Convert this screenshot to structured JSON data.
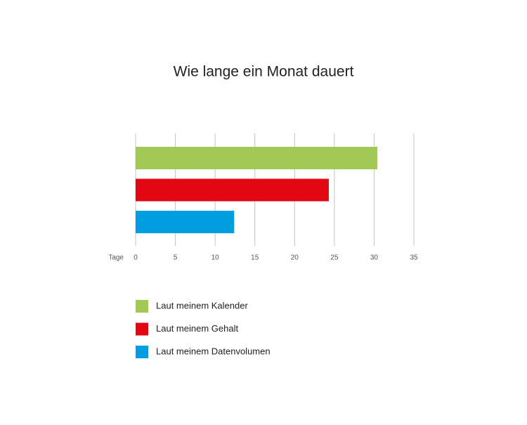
{
  "chart_data": {
    "type": "bar",
    "orientation": "horizontal",
    "title": "Wie lange ein Monat dauert",
    "xlabel": "Tage",
    "series": [
      {
        "name": "Laut meinem Kalender",
        "color": "#a2c955",
        "values": [
          30.4
        ]
      },
      {
        "name": "Laut meinem Gehalt",
        "color": "#e30613",
        "values": [
          24.3
        ]
      },
      {
        "name": "Laut meinem Datenvolumen",
        "color": "#009ee0",
        "values": [
          12.4
        ]
      }
    ],
    "xlim": [
      0,
      35
    ],
    "xticks": [
      0,
      5,
      10,
      15,
      20,
      25,
      30,
      35
    ],
    "grid": true
  }
}
